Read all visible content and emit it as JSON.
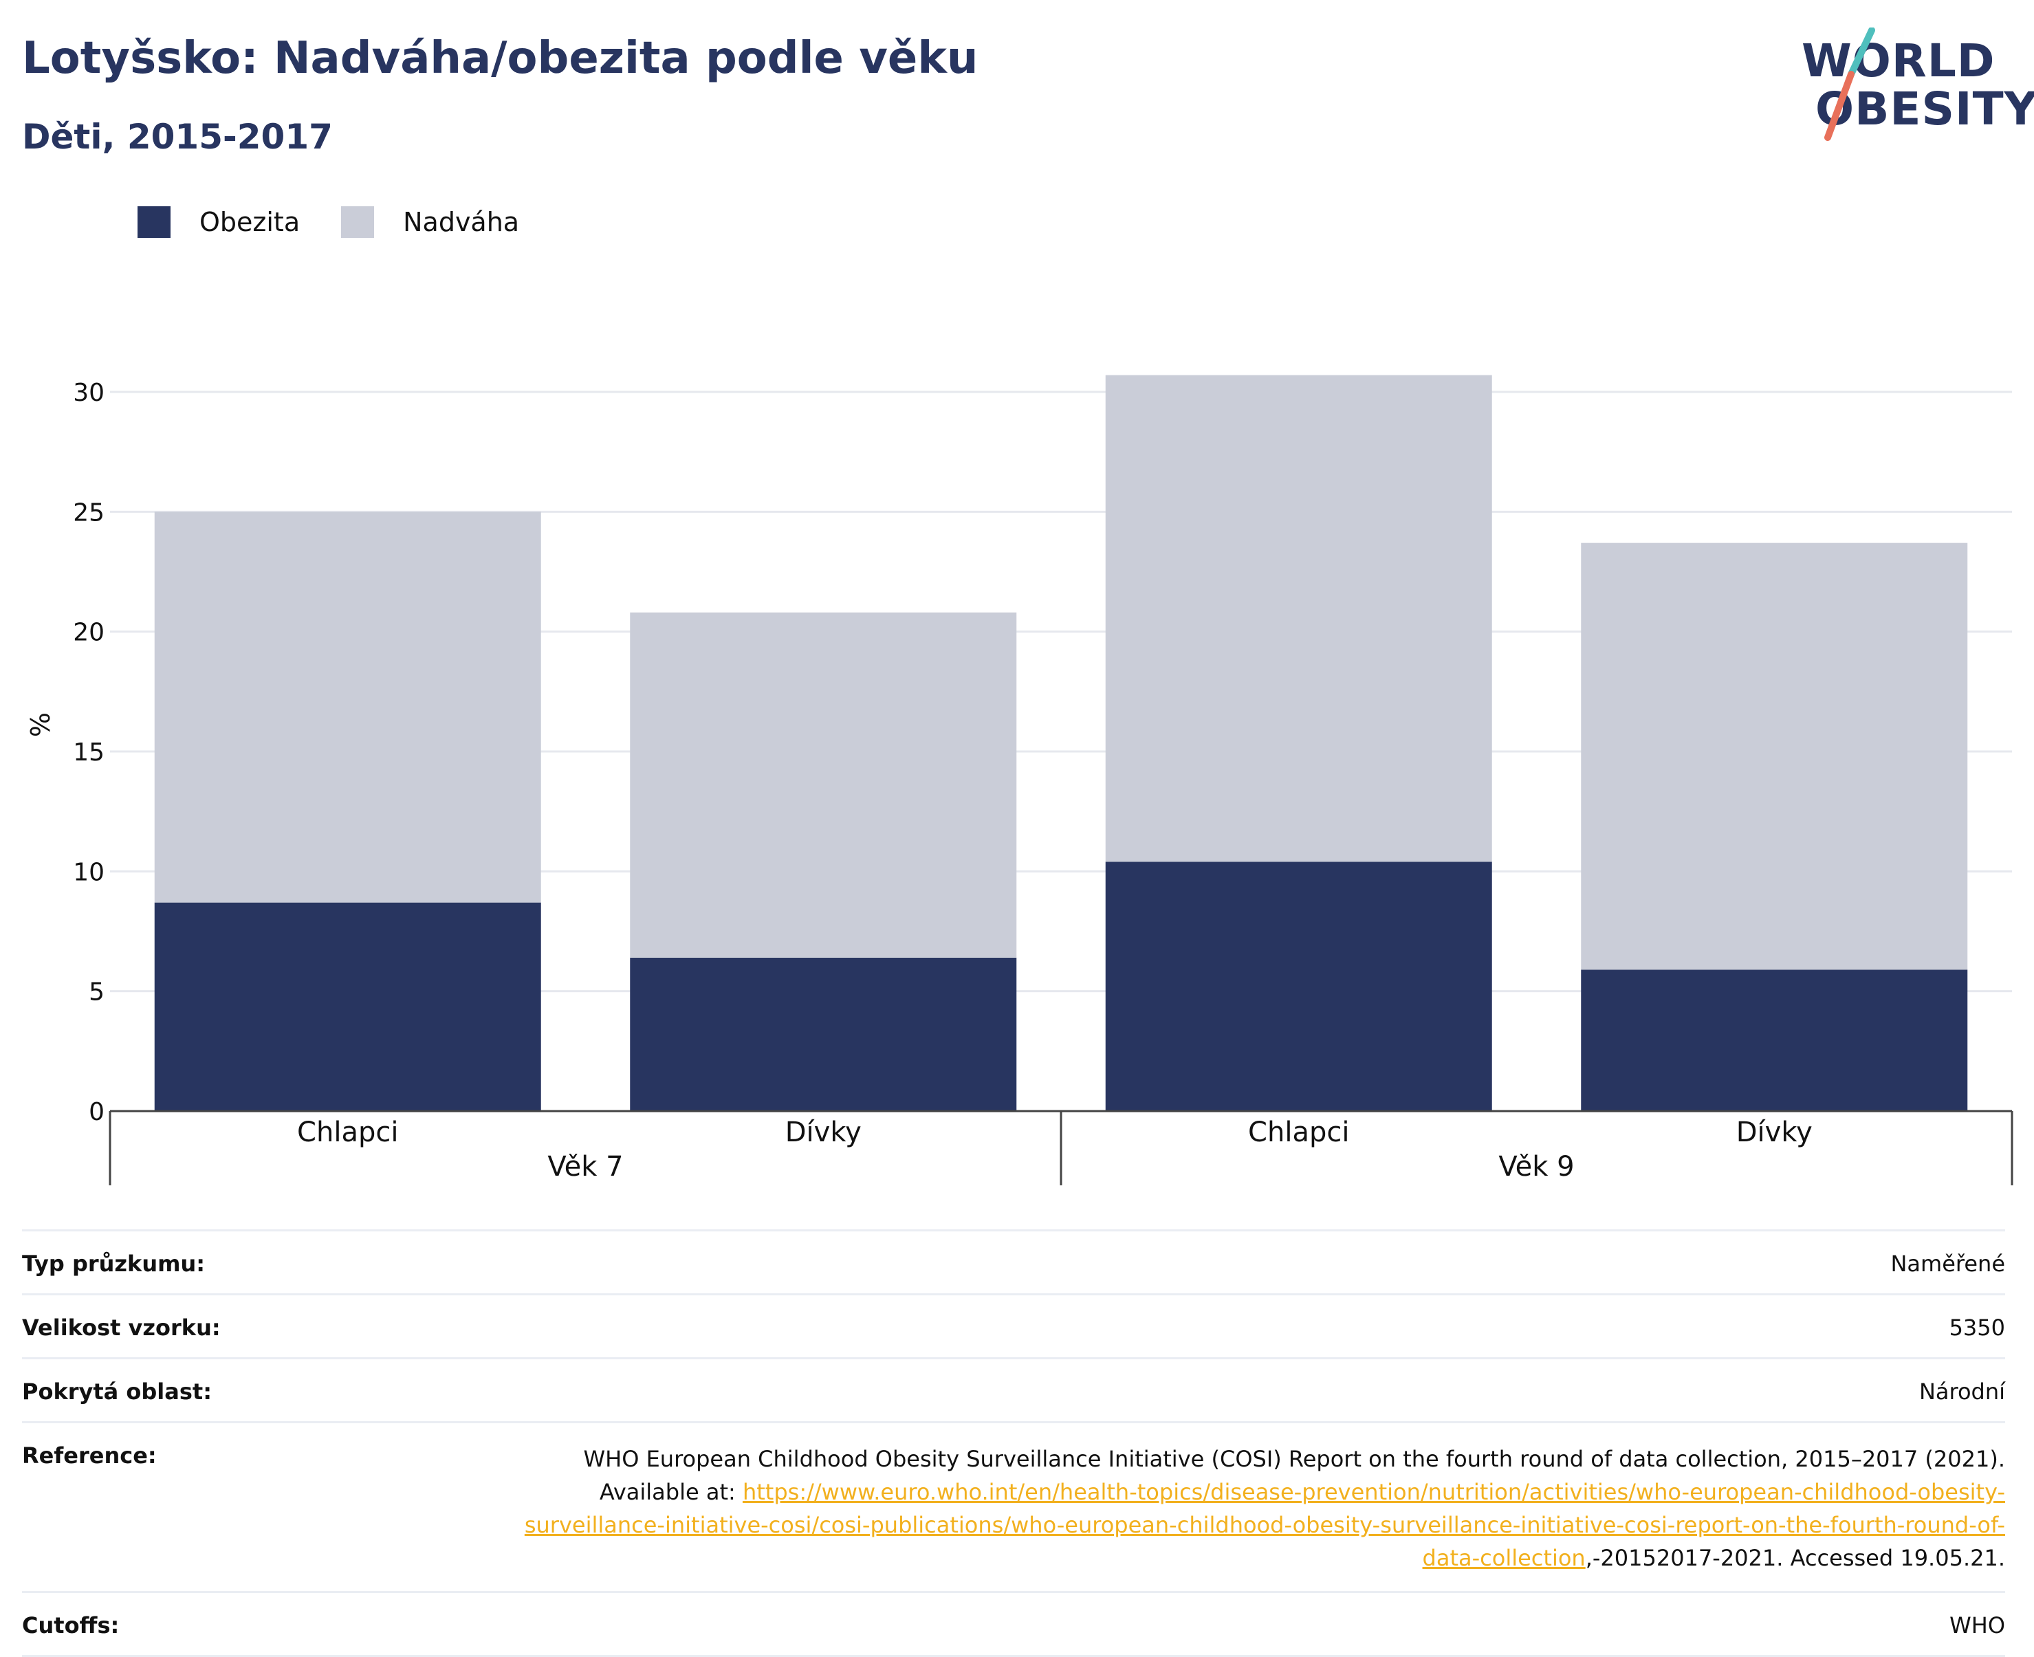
{
  "header": {
    "title": "Lotyšsko: Nadváha/obezita podle věku",
    "subtitle": "Děti, 2015-2017"
  },
  "logo": {
    "line1": "WORLD",
    "line2": "OBESITY"
  },
  "colors": {
    "obezita": "#283560",
    "nadvaha": "#cacdd8",
    "grid": "#e6e8ee",
    "axis": "#444444",
    "logo_teal": "#4fbfbd",
    "logo_coral": "#e8705a",
    "link": "#f2b01e"
  },
  "chart_data": {
    "type": "bar",
    "stacked": true,
    "ylabel": "%",
    "ylim": [
      0,
      30
    ],
    "yticks": [
      0,
      5,
      10,
      15,
      20,
      25,
      30
    ],
    "grid": true,
    "legend_position": "top-left",
    "categories": [
      "Chlapci",
      "Dívky",
      "Chlapci",
      "Dívky"
    ],
    "groups": [
      {
        "label": "Věk 7",
        "categories": [
          0,
          1
        ]
      },
      {
        "label": "Věk 9",
        "categories": [
          2,
          3
        ]
      }
    ],
    "series": [
      {
        "name": "Obezita",
        "values": [
          8.7,
          6.4,
          10.4,
          5.9
        ]
      },
      {
        "name": "Nadváha",
        "values": [
          16.3,
          14.4,
          20.3,
          17.8
        ]
      }
    ]
  },
  "meta": {
    "survey_type": {
      "label": "Typ průzkumu:",
      "value": "Naměřené"
    },
    "sample_size": {
      "label": "Velikost vzorku:",
      "value": "5350"
    },
    "coverage": {
      "label": "Pokrytá oblast:",
      "value": "Národní"
    },
    "reference": {
      "label": "Reference:",
      "text_before": "WHO European Childhood Obesity Surveillance Initiative (COSI) Report on the fourth round of data collection, 2015–2017 (2021). Available at: ",
      "link": "https://www.euro.who.int/en/health-topics/disease-prevention/nutrition/activities/who-european-childhood-obesity-surveillance-initiative-cosi/cosi-publications/who-european-childhood-obesity-surveillance-initiative-cosi-report-on-the-fourth-round-of-data-collection",
      "text_after": ",-20152017-2021. Accessed 19.05.21."
    },
    "cutoffs": {
      "label": "Cutoffs:",
      "value": "WHO"
    }
  }
}
